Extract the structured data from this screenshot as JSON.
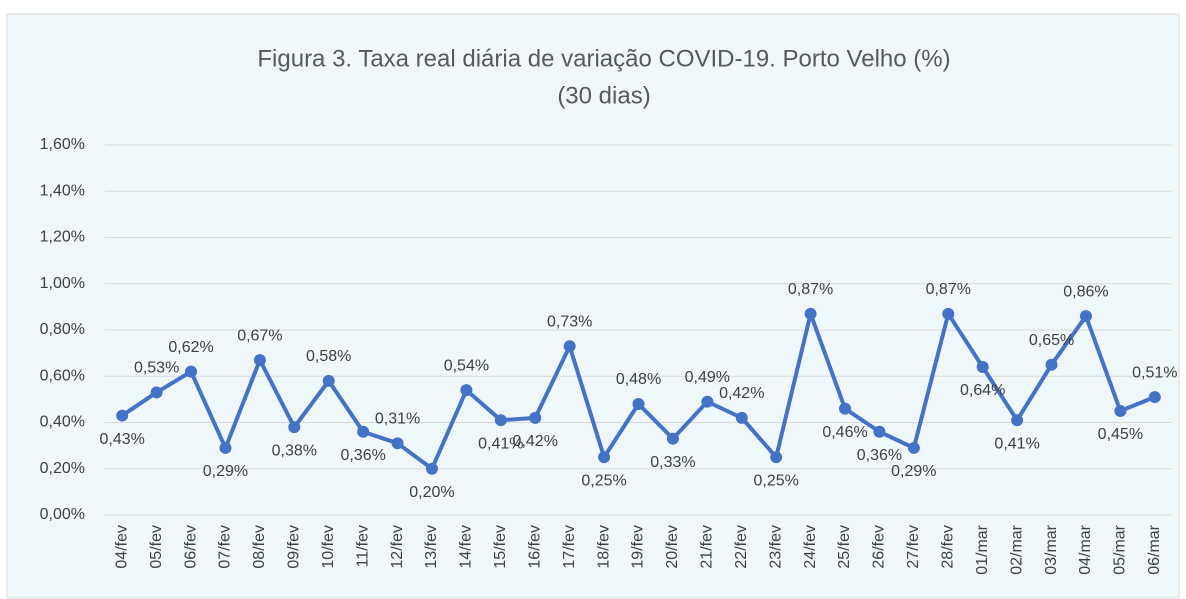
{
  "chart_data": {
    "type": "line",
    "title": "Figura 3. Taxa real diária de variação COVID-19. Porto Velho (%)",
    "subtitle": "(30 dias)",
    "categories": [
      "04/fev",
      "05/fev",
      "06/fev",
      "07/fev",
      "08/fev",
      "09/fev",
      "10/fev",
      "11/fev",
      "12/fev",
      "13/fev",
      "14/fev",
      "15/fev",
      "16/fev",
      "17/fev",
      "18/fev",
      "19/fev",
      "20/fev",
      "21/fev",
      "22/fev",
      "23/fev",
      "24/fev",
      "25/fev",
      "26/fev",
      "27/fev",
      "28/fev",
      "01/mar",
      "02/mar",
      "03/mar",
      "04/mar",
      "05/mar",
      "06/mar"
    ],
    "values": [
      0.43,
      0.53,
      0.62,
      0.29,
      0.67,
      0.38,
      0.58,
      0.36,
      0.31,
      0.2,
      0.54,
      0.41,
      0.42,
      0.73,
      0.25,
      0.48,
      0.33,
      0.49,
      0.42,
      0.25,
      0.87,
      0.46,
      0.36,
      0.29,
      0.87,
      0.64,
      0.41,
      0.65,
      0.86,
      0.45,
      0.51
    ],
    "value_labels": [
      "0,43%",
      "0,53%",
      "0,62%",
      "0,29%",
      "0,67%",
      "0,38%",
      "0,58%",
      "0,36%",
      "0,31%",
      "0,20%",
      "0,54%",
      "0,41%",
      "0,42%",
      "0,73%",
      "0,25%",
      "0,48%",
      "0,33%",
      "0,49%",
      "0,42%",
      "0,25%",
      "0,87%",
      "0,46%",
      "0,36%",
      "0,29%",
      "0,87%",
      "0,64%",
      "0,41%",
      "0,65%",
      "0,86%",
      "0,45%",
      "0,51%"
    ],
    "color": "#4472c4",
    "ylim": [
      0,
      1.6
    ],
    "yticks": [
      {
        "value": 0,
        "label": "0,00%"
      },
      {
        "value": 0.2,
        "label": "0,20%"
      },
      {
        "value": 0.4,
        "label": "0,40%"
      },
      {
        "value": 0.6,
        "label": "0,60%"
      },
      {
        "value": 0.8,
        "label": "0,80%"
      },
      {
        "value": 1.0,
        "label": "1,00%"
      },
      {
        "value": 1.2,
        "label": "1,20%"
      },
      {
        "value": 1.4,
        "label": "1,40%"
      },
      {
        "value": 1.6,
        "label": "1,60%"
      }
    ],
    "grid": true
  }
}
